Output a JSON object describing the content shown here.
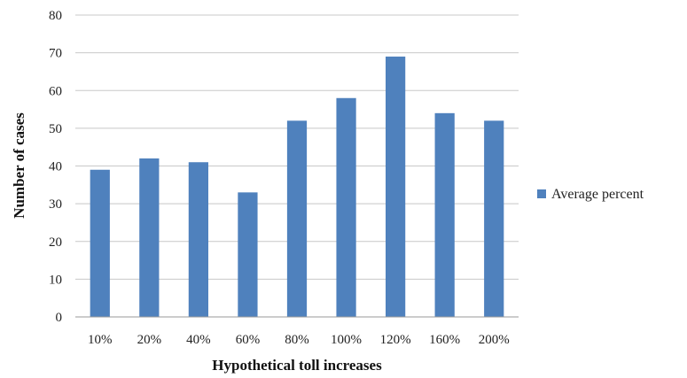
{
  "chart_data": {
    "type": "bar",
    "categories": [
      "10%",
      "20%",
      "40%",
      "60%",
      "80%",
      "100%",
      "120%",
      "160%",
      "200%"
    ],
    "series": [
      {
        "name": "Average percent",
        "values": [
          39,
          42,
          41,
          33,
          52,
          58,
          69,
          54,
          52
        ],
        "color": "#4f81bd"
      }
    ],
    "title": "",
    "xlabel": "Hypothetical toll increases",
    "ylabel": "Number of cases",
    "ylim": [
      0,
      80
    ],
    "yticks": [
      0,
      10,
      20,
      30,
      40,
      50,
      60,
      70,
      80
    ],
    "grid": true,
    "legend_position": "right"
  }
}
